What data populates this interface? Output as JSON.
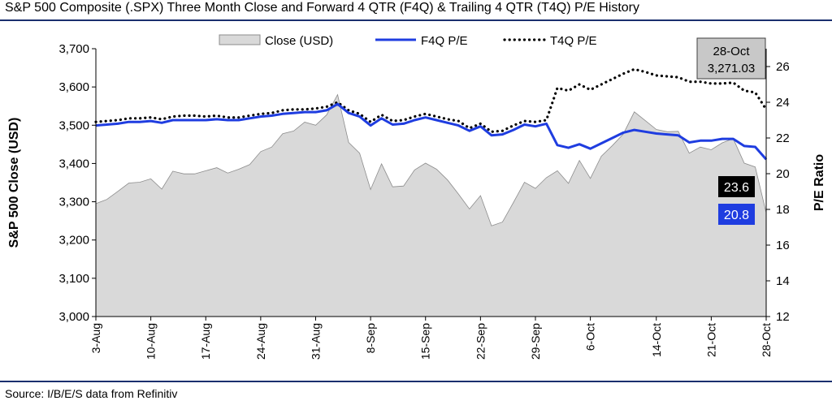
{
  "title": "S&P 500 Composite (.SPX) Three Month Close and Forward 4 QTR (F4Q) & Trailing 4 QTR (T4Q) P/E History",
  "source": "Source: I/B/E/S data from Refinitiv",
  "colors": {
    "close_fill": "#d9d9d9",
    "close_stroke": "#8c8c8c",
    "f4q": "#1f3de0",
    "t4q": "#000000"
  },
  "chart_data": {
    "type": "area",
    "x_ticks": [
      "3-Aug",
      "10-Aug",
      "17-Aug",
      "24-Aug",
      "31-Aug",
      "8-Sep",
      "15-Sep",
      "22-Sep",
      "29-Sep",
      "6-Oct",
      "14-Oct",
      "21-Oct",
      "28-Oct"
    ],
    "x": [
      "3-Aug",
      "4-Aug",
      "5-Aug",
      "6-Aug",
      "7-Aug",
      "10-Aug",
      "11-Aug",
      "12-Aug",
      "13-Aug",
      "14-Aug",
      "17-Aug",
      "18-Aug",
      "19-Aug",
      "20-Aug",
      "21-Aug",
      "24-Aug",
      "25-Aug",
      "26-Aug",
      "27-Aug",
      "28-Aug",
      "31-Aug",
      "1-Sep",
      "2-Sep",
      "3-Sep",
      "4-Sep",
      "8-Sep",
      "9-Sep",
      "10-Sep",
      "11-Sep",
      "14-Sep",
      "15-Sep",
      "16-Sep",
      "17-Sep",
      "18-Sep",
      "21-Sep",
      "22-Sep",
      "23-Sep",
      "24-Sep",
      "25-Sep",
      "28-Sep",
      "29-Sep",
      "30-Sep",
      "1-Oct",
      "2-Oct",
      "5-Oct",
      "6-Oct",
      "7-Oct",
      "8-Oct",
      "9-Oct",
      "12-Oct",
      "13-Oct",
      "14-Oct",
      "15-Oct",
      "16-Oct",
      "19-Oct",
      "20-Oct",
      "21-Oct",
      "22-Oct",
      "23-Oct",
      "26-Oct",
      "27-Oct",
      "28-Oct"
    ],
    "ylabel": "S&P 500 Close (USD)",
    "y2label": "P/E Ratio",
    "ylim": [
      3000,
      3700
    ],
    "y_ticks": [
      "3,000",
      "3,100",
      "3,200",
      "3,300",
      "3,400",
      "3,500",
      "3,600",
      "3,700"
    ],
    "y2lim": [
      12,
      27
    ],
    "y2_ticks": [
      "12",
      "14",
      "16",
      "18",
      "20",
      "22",
      "24",
      "26"
    ],
    "legend_position": "top",
    "series": [
      {
        "name": "Close (USD)",
        "axis": "left",
        "type": "area",
        "values": [
          3295,
          3306,
          3327,
          3349,
          3351,
          3360,
          3333,
          3380,
          3373,
          3373,
          3381,
          3389,
          3375,
          3385,
          3397,
          3431,
          3443,
          3478,
          3485,
          3508,
          3500,
          3527,
          3580,
          3455,
          3427,
          3332,
          3399,
          3339,
          3341,
          3383,
          3401,
          3385,
          3357,
          3320,
          3281,
          3316,
          3237,
          3247,
          3298,
          3351,
          3335,
          3363,
          3381,
          3348,
          3408,
          3361,
          3419,
          3447,
          3477,
          3535,
          3512,
          3489,
          3483,
          3484,
          3427,
          3443,
          3436,
          3454,
          3465,
          3401,
          3391,
          3271
        ]
      },
      {
        "name": "F4Q P/E",
        "axis": "right",
        "type": "line",
        "values": [
          22.7,
          22.75,
          22.8,
          22.9,
          22.9,
          22.95,
          22.85,
          23.0,
          23.0,
          23.0,
          23.0,
          23.05,
          23.0,
          23.0,
          23.1,
          23.2,
          23.25,
          23.35,
          23.4,
          23.45,
          23.45,
          23.55,
          23.9,
          23.4,
          23.2,
          22.7,
          23.1,
          22.75,
          22.8,
          23.0,
          23.15,
          23.0,
          22.85,
          22.7,
          22.4,
          22.65,
          22.15,
          22.2,
          22.45,
          22.75,
          22.65,
          22.8,
          21.6,
          21.45,
          21.65,
          21.4,
          21.7,
          22.0,
          22.3,
          22.45,
          22.35,
          22.25,
          22.2,
          22.15,
          21.75,
          21.85,
          21.85,
          21.95,
          21.95,
          21.55,
          21.5,
          20.8
        ]
      },
      {
        "name": "T4Q P/E",
        "axis": "right",
        "type": "line",
        "style": "dotted",
        "values": [
          22.9,
          22.95,
          23.0,
          23.1,
          23.1,
          23.15,
          23.05,
          23.2,
          23.25,
          23.25,
          23.2,
          23.25,
          23.15,
          23.15,
          23.25,
          23.35,
          23.4,
          23.55,
          23.6,
          23.6,
          23.65,
          23.75,
          24.0,
          23.55,
          23.35,
          22.9,
          23.3,
          22.95,
          23.0,
          23.2,
          23.35,
          23.2,
          23.05,
          22.95,
          22.55,
          22.8,
          22.35,
          22.4,
          22.7,
          22.95,
          22.9,
          23.0,
          24.8,
          24.65,
          25.0,
          24.7,
          25.0,
          25.3,
          25.6,
          25.85,
          25.7,
          25.5,
          25.45,
          25.4,
          25.15,
          25.15,
          25.05,
          25.05,
          25.1,
          24.65,
          24.55,
          23.6
        ]
      }
    ],
    "annotations": [
      {
        "text": "28-Oct",
        "text2": "3,271.03",
        "target": "close",
        "index": 61
      },
      {
        "text": "23.6",
        "target": "t4q"
      },
      {
        "text": "20.8",
        "target": "f4q"
      }
    ]
  }
}
